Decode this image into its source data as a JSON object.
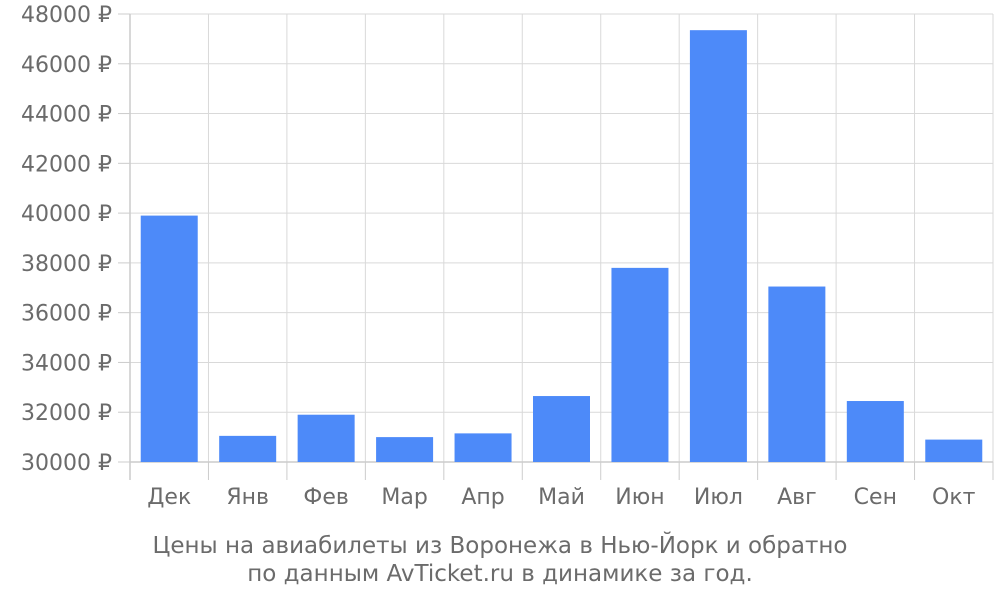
{
  "chart_data": {
    "type": "bar",
    "categories": [
      "Дек",
      "Янв",
      "Фев",
      "Мар",
      "Апр",
      "Май",
      "Июн",
      "Июл",
      "Авг",
      "Сен",
      "Окт"
    ],
    "values": [
      39900,
      31050,
      31900,
      31000,
      31150,
      32650,
      37800,
      47350,
      37050,
      32450,
      30900
    ],
    "ylim": [
      30000,
      48000
    ],
    "yticks": [
      30000,
      32000,
      34000,
      36000,
      38000,
      40000,
      42000,
      44000,
      46000,
      48000
    ],
    "ytick_suffix": " ₽",
    "bar_color": "#4d8af9",
    "grid": true,
    "title_line1": "Цены на авиабилеты из Воронежа в Нью-Йорк и обратно",
    "title_line2": "по данным AvTicket.ru в динамике за год."
  }
}
